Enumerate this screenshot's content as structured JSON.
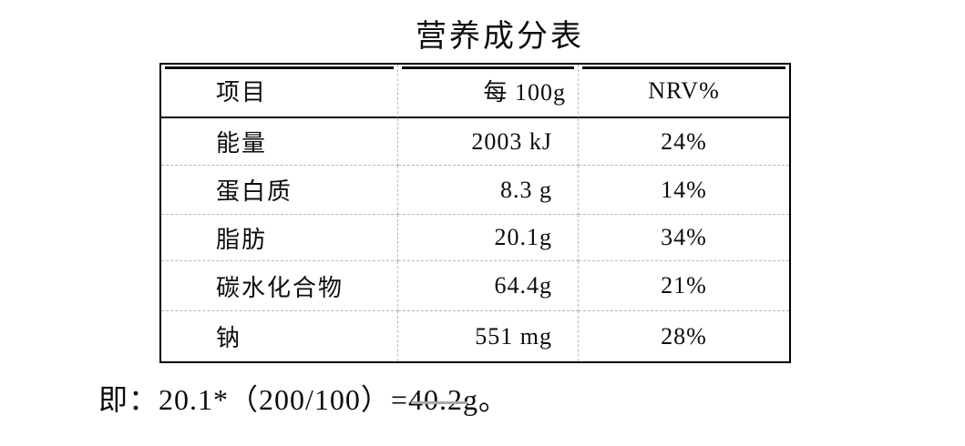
{
  "title": "营养成分表",
  "table": {
    "columns": [
      "项目",
      "每 100g",
      "NRV%"
    ],
    "rows": [
      {
        "item": "能量",
        "per_100g": "2003 kJ",
        "nrv": "24%"
      },
      {
        "item": "蛋白质",
        "per_100g": "8.3 g",
        "nrv": "14%"
      },
      {
        "item": "脂肪",
        "per_100g": "20.1g",
        "nrv": "34%"
      },
      {
        "item": "碳水化合物",
        "per_100g": "64.4g",
        "nrv": "21%"
      },
      {
        "item": "钠",
        "per_100g": "551 mg",
        "nrv": "28%"
      }
    ]
  },
  "note": "即：20.1*（200/100）=40.2g。",
  "colors": {
    "outer_border": "#000000",
    "grid_dash": "#b8b8b8",
    "text": "#0d0d0d",
    "proofing_underline": "#a8a8a8",
    "background": "#ffffff"
  }
}
